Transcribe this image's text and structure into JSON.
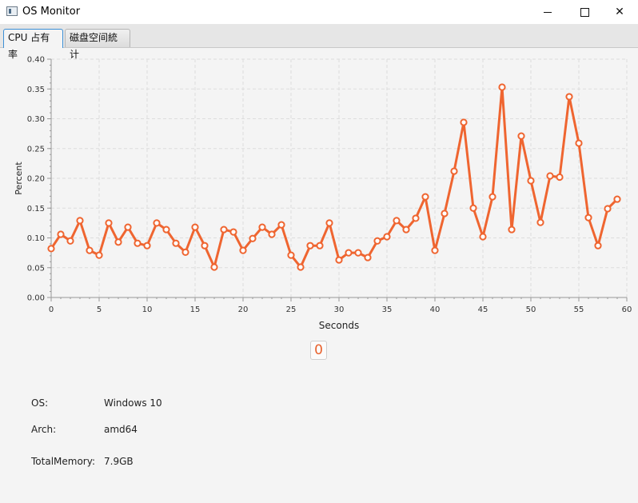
{
  "window": {
    "title": "OS Monitor"
  },
  "tabs": [
    {
      "label": "CPU 占有率",
      "active": true
    },
    {
      "label": "磁盘空间統计",
      "active": false
    }
  ],
  "chart_data": {
    "type": "line",
    "title": "",
    "xlabel": "Seconds",
    "ylabel": "Percent",
    "xlim": [
      0,
      60
    ],
    "ylim": [
      0,
      0.4
    ],
    "x_ticks": [
      0,
      5,
      10,
      15,
      20,
      25,
      30,
      35,
      40,
      45,
      50,
      55,
      60
    ],
    "y_ticks": [
      0.0,
      0.05,
      0.1,
      0.15,
      0.2,
      0.25,
      0.3,
      0.35,
      0.4
    ],
    "grid": true,
    "line_color": "#ef6530",
    "series": [
      {
        "x": [
          0,
          1,
          2,
          3,
          4,
          5,
          6,
          7,
          8,
          9,
          10,
          11,
          12,
          13,
          14,
          15,
          16,
          17,
          18,
          19,
          20,
          21,
          22,
          23,
          24,
          25,
          26,
          27,
          28,
          29,
          30,
          31,
          32,
          33,
          34,
          35,
          36,
          37,
          38,
          39,
          40,
          41,
          42,
          43,
          44,
          45,
          46,
          47,
          48,
          49,
          50,
          51,
          52,
          53,
          54,
          55,
          56,
          57,
          58,
          59
        ],
        "values": [
          0.082,
          0.106,
          0.095,
          0.129,
          0.079,
          0.071,
          0.125,
          0.093,
          0.118,
          0.091,
          0.087,
          0.125,
          0.114,
          0.091,
          0.076,
          0.118,
          0.087,
          0.051,
          0.114,
          0.11,
          0.079,
          0.099,
          0.118,
          0.106,
          0.122,
          0.071,
          0.051,
          0.087,
          0.087,
          0.125,
          0.063,
          0.075,
          0.075,
          0.067,
          0.095,
          0.102,
          0.129,
          0.114,
          0.133,
          0.169,
          0.079,
          0.141,
          0.212,
          0.294,
          0.15,
          0.102,
          0.169,
          0.353,
          0.114,
          0.271,
          0.196,
          0.126,
          0.204,
          0.202,
          0.337,
          0.259,
          0.134,
          0.087,
          0.149,
          0.165
        ]
      }
    ]
  },
  "controls": {
    "zero_label": "0"
  },
  "info": {
    "os_label": "OS:",
    "os_value": "Windows 10",
    "arch_label": "Arch:",
    "arch_value": "amd64",
    "mem_label": "TotalMemory:",
    "mem_value": "7.9GB"
  }
}
